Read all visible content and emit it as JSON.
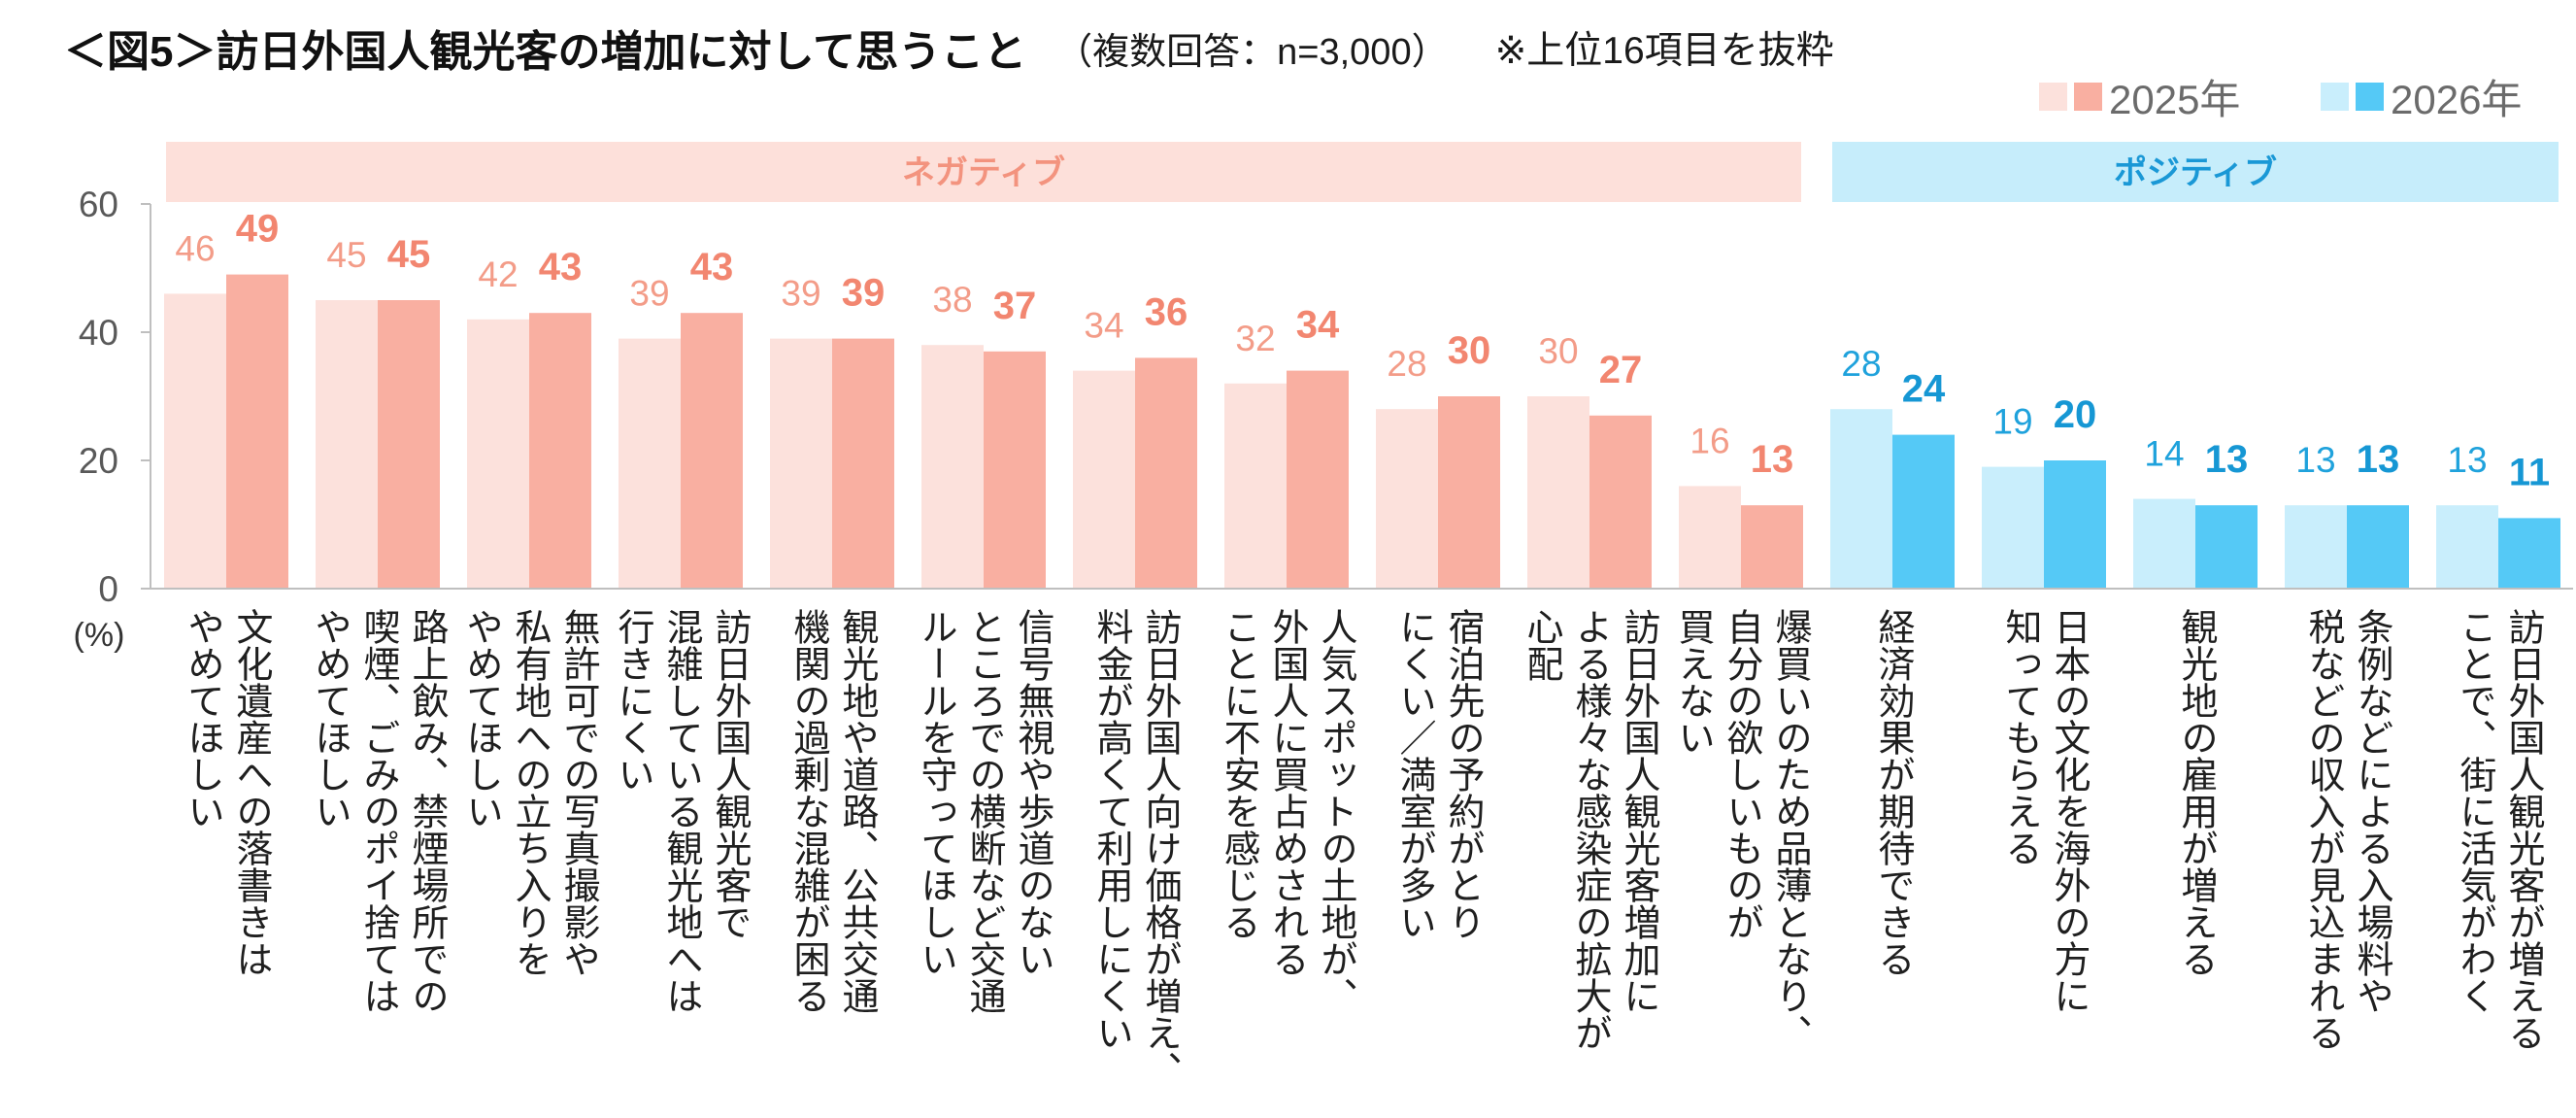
{
  "chart_data": {
    "type": "bar",
    "title": "＜図5＞訪日外国人観光客の増加に対して思うこと",
    "subtitle": "（複数回答：n=3,000）",
    "note": "※上位16項目を抜粋",
    "xlabel": "",
    "ylabel": "(%)",
    "ylim": [
      0,
      60
    ],
    "yticks": [
      0,
      20,
      40,
      60
    ],
    "legend_position": "top-right",
    "groups": [
      {
        "label": "ネガティブ",
        "count": 11,
        "bar_colors": [
          "#FCE1DC",
          "#F9AFA1"
        ],
        "band_color": "#FDE0DA",
        "text_color": "#F3937E",
        "value_colors": [
          "#F39C88",
          "#F28670"
        ]
      },
      {
        "label": "ポジティブ",
        "count": 5,
        "bar_colors": [
          "#C9EEFC",
          "#55C9F6"
        ],
        "band_color": "#C6EDFB",
        "text_color": "#1A98D6",
        "value_colors": [
          "#1FA2DC",
          "#1697D4"
        ]
      }
    ],
    "categories": [
      [
        "文化遺産への落書きは",
        "やめてほしい"
      ],
      [
        "路上飲み、禁煙場所での",
        "喫煙、ごみのポイ捨ては",
        "やめてほしい"
      ],
      [
        "無許可での写真撮影や",
        "私有地への立ち入りを",
        "やめてほしい"
      ],
      [
        "訪日外国人観光客で",
        "混雑している観光地へは",
        "行きにくい"
      ],
      [
        "観光地や道路、公共交通",
        "機関の過剰な混雑が困る"
      ],
      [
        "信号無視や歩道のない",
        "ところでの横断など交通",
        "ルールを守ってほしい"
      ],
      [
        "訪日外国人向け価格が増え、",
        "料金が高くて利用しにくい"
      ],
      [
        "人気スポットの土地が、",
        "外国人に買占めされる",
        "ことに不安を感じる"
      ],
      [
        "宿泊先の予約がとり",
        "にくい／満室が多い"
      ],
      [
        "訪日外国人観光客増加に",
        "よる様々な感染症の拡大が",
        "心配"
      ],
      [
        "爆買いのため品薄となり、",
        "自分の欲しいものが",
        "買えない"
      ],
      [
        "経済効果が期待できる"
      ],
      [
        "日本の文化を海外の方に",
        "知ってもらえる"
      ],
      [
        "観光地の雇用が増える"
      ],
      [
        "条例などによる入場料や",
        "税などの収入が見込まれる"
      ],
      [
        "訪日外国人観光客が増える",
        "ことで、街に活気がわく"
      ]
    ],
    "series": [
      {
        "name": "2025年",
        "legend_swatches": [
          "#FCE1DC",
          "#F9AFA1"
        ],
        "values": [
          46,
          45,
          42,
          39,
          39,
          38,
          34,
          32,
          28,
          30,
          16,
          28,
          19,
          14,
          13,
          13
        ]
      },
      {
        "name": "2026年",
        "legend_swatches": [
          "#C9EEFC",
          "#55C9F6"
        ],
        "values": [
          49,
          45,
          43,
          43,
          39,
          37,
          36,
          34,
          30,
          27,
          13,
          24,
          20,
          13,
          13,
          11
        ]
      }
    ]
  }
}
